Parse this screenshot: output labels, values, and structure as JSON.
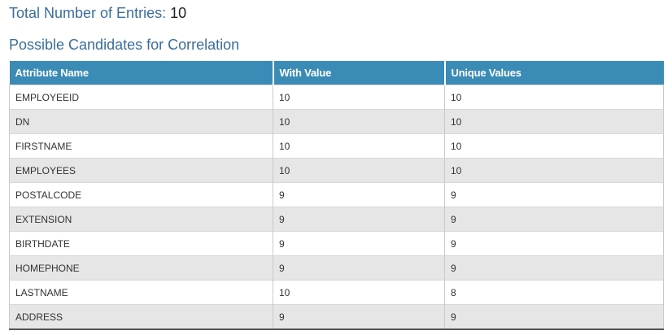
{
  "summary": {
    "total_label": "Total Number of Entries:",
    "total_value": "10"
  },
  "section": {
    "title": "Possible Candidates for Correlation"
  },
  "table": {
    "headers": [
      "Attribute Name",
      "With Value",
      "Unique Values"
    ],
    "rows": [
      [
        "EMPLOYEEID",
        "10",
        "10"
      ],
      [
        "DN",
        "10",
        "10"
      ],
      [
        "FIRSTNAME",
        "10",
        "10"
      ],
      [
        "EMPLOYEES",
        "10",
        "10"
      ],
      [
        "POSTALCODE",
        "9",
        "9"
      ],
      [
        "EXTENSION",
        "9",
        "9"
      ],
      [
        "BIRTHDATE",
        "9",
        "9"
      ],
      [
        "HOMEPHONE",
        "9",
        "9"
      ],
      [
        "LASTNAME",
        "10",
        "8"
      ],
      [
        "ADDRESS",
        "9",
        "9"
      ]
    ]
  },
  "colors": {
    "header_bg": "#3a8bb6",
    "title_text": "#3a6e9c",
    "stripe_bg": "#e6e6e6"
  }
}
